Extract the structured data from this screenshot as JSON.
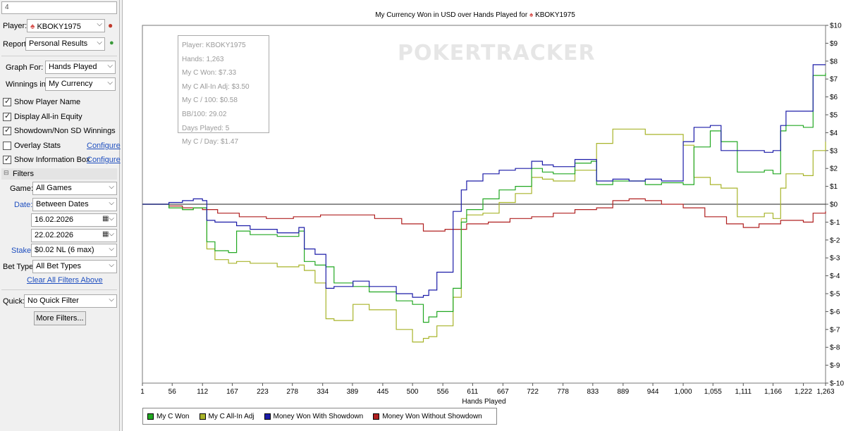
{
  "filters_panel": {
    "top_field_value": "4",
    "player_label": "Player:",
    "player_value": "KBOKY1975",
    "report_label": "Report:",
    "report_value": "Personal Results",
    "graph_for_label": "Graph For:",
    "graph_for_value": "Hands Played",
    "winnings_in_label": "Winnings in:",
    "winnings_in_value": "My Currency",
    "checkboxes": [
      {
        "label": "Show Player Name",
        "checked": true
      },
      {
        "label": "Display All-in Equity",
        "checked": true
      },
      {
        "label": "Showdown/Non SD Winnings",
        "checked": true
      },
      {
        "label": "Overlay Stats",
        "checked": false
      },
      {
        "label": "Show Information Box",
        "checked": true
      }
    ],
    "configure_label": "Configure",
    "filters_header": "Filters",
    "game_label": "Game:",
    "game_value": "All Games",
    "date_label": "Date:",
    "date_value": "Between Dates",
    "date_from": "16.02.2026",
    "date_to": "22.02.2026",
    "stake_label": "Stake:",
    "stake_value": "$0.02 NL (6 max)",
    "bet_type_label": "Bet Type:",
    "bet_type_value": "All Bet Types",
    "clear_filters_label": "Clear All Filters Above",
    "quick_label": "Quick:",
    "quick_value": "No Quick Filter",
    "more_filters_label": "More Filters..."
  },
  "info_box": [
    "Player: KBOKY1975",
    "Hands: 1,263",
    "My C Won: $7.33",
    "My C All-In Adj: $3.50",
    "My C / 100: $0.58",
    "BB/100: 29.02",
    "Days Played: 5",
    "My C / Day: $1.47"
  ],
  "watermark": "POKERTRACKER",
  "colors": {
    "my_c_won": "#22a822",
    "all_in_adj": "#a8b42a",
    "showdown": "#1c1ca8",
    "non_showdown": "#b02020"
  },
  "chart_data": {
    "type": "line",
    "title": "My Currency Won in USD over Hands Played for",
    "title_player": "KBOKY1975",
    "xlabel": "Hands Played",
    "ylabel": "",
    "xlim": [
      1,
      1263
    ],
    "ylim": [
      -10,
      10
    ],
    "x_ticks": [
      1,
      56,
      112,
      167,
      223,
      278,
      334,
      389,
      445,
      500,
      556,
      611,
      667,
      722,
      778,
      833,
      889,
      944,
      1000,
      1055,
      1111,
      1166,
      1222,
      1263
    ],
    "x_tick_labels": [
      "1",
      "56",
      "112",
      "167",
      "223",
      "278",
      "334",
      "389",
      "445",
      "500",
      "556",
      "611",
      "667",
      "722",
      "778",
      "833",
      "889",
      "944",
      "1,000",
      "1,055",
      "1,111",
      "1,166",
      "1,222",
      "1,263"
    ],
    "y_ticks": [
      10,
      9,
      8,
      7,
      6,
      5,
      4,
      3,
      2,
      1,
      0,
      -1,
      -2,
      -3,
      -4,
      -5,
      -6,
      -7,
      -8,
      -9,
      -10
    ],
    "y_tick_labels": [
      "$10",
      "$9",
      "$8",
      "$7",
      "$6",
      "$5",
      "$4",
      "$3",
      "$2",
      "$1",
      "$0",
      "$-1",
      "$-2",
      "$-3",
      "$-4",
      "$-5",
      "$-6",
      "$-7",
      "$-8",
      "$-9",
      "$-10"
    ],
    "grid": false,
    "legend_position": "bottom-left",
    "series": [
      {
        "name": "My C Won",
        "color": "#22a822",
        "x": [
          1,
          25,
          50,
          75,
          95,
          112,
          120,
          135,
          160,
          175,
          200,
          250,
          290,
          300,
          320,
          340,
          355,
          390,
          420,
          470,
          500,
          520,
          530,
          545,
          575,
          590,
          600,
          630,
          660,
          690,
          720,
          740,
          760,
          800,
          830,
          840,
          870,
          900,
          930,
          960,
          1000,
          1020,
          1050,
          1070,
          1100,
          1150,
          1166,
          1180,
          1190,
          1222,
          1240,
          1263
        ],
        "y": [
          0,
          0,
          -0.2,
          -0.3,
          -0.2,
          -0.2,
          -2.1,
          -2.6,
          -2.7,
          -1.5,
          -1.7,
          -1.8,
          -1.5,
          -3.2,
          -3.4,
          -3.5,
          -4.4,
          -4.6,
          -4.9,
          -5.4,
          -5.6,
          -6.6,
          -6.3,
          -6.0,
          -4.7,
          -1.0,
          -0.3,
          0.3,
          0.8,
          1.0,
          2.0,
          1.8,
          1.7,
          2.3,
          2.4,
          1.1,
          1.3,
          1.3,
          1.1,
          1.2,
          1.1,
          3.2,
          4.1,
          3.5,
          1.8,
          1.9,
          1.7,
          4.1,
          4.4,
          4.3,
          7.2,
          7.33
        ]
      },
      {
        "name": "My C All-In Adj",
        "color": "#a8b42a",
        "x": [
          1,
          25,
          50,
          75,
          95,
          112,
          120,
          135,
          160,
          175,
          200,
          250,
          290,
          300,
          320,
          340,
          355,
          390,
          420,
          470,
          500,
          520,
          530,
          545,
          575,
          590,
          600,
          630,
          660,
          690,
          720,
          740,
          760,
          800,
          830,
          840,
          870,
          900,
          930,
          960,
          1000,
          1020,
          1050,
          1070,
          1100,
          1150,
          1166,
          1180,
          1190,
          1222,
          1240,
          1263
        ],
        "y": [
          0,
          0,
          -0.2,
          -0.3,
          -0.2,
          -0.2,
          -2.5,
          -3.1,
          -3.3,
          -3.2,
          -3.3,
          -3.5,
          -3.4,
          -3.7,
          -4.4,
          -6.4,
          -6.5,
          -5.6,
          -5.9,
          -7.0,
          -7.7,
          -7.5,
          -7.4,
          -6.8,
          -5.2,
          -0.8,
          -0.6,
          -0.5,
          0.1,
          0.6,
          1.5,
          1.4,
          1.3,
          1.9,
          1.9,
          3.4,
          4.2,
          4.2,
          3.9,
          3.9,
          3.3,
          1.5,
          1.1,
          0.9,
          -0.7,
          -0.5,
          -0.8,
          0.9,
          1.7,
          1.6,
          3.0,
          3.5
        ]
      },
      {
        "name": "Money Won With Showdown",
        "color": "#1c1ca8",
        "x": [
          1,
          25,
          50,
          75,
          95,
          112,
          120,
          135,
          160,
          175,
          200,
          250,
          290,
          300,
          320,
          340,
          355,
          390,
          420,
          470,
          500,
          520,
          530,
          545,
          575,
          590,
          600,
          630,
          660,
          690,
          720,
          740,
          760,
          800,
          830,
          840,
          870,
          900,
          930,
          960,
          1000,
          1020,
          1050,
          1070,
          1100,
          1150,
          1166,
          1180,
          1190,
          1222,
          1240,
          1263
        ],
        "y": [
          0,
          0,
          0.1,
          0.2,
          0.3,
          0.2,
          -0.9,
          -1.0,
          -1.0,
          -1.2,
          -1.4,
          -1.6,
          -1.3,
          -2.5,
          -2.8,
          -4.7,
          -4.6,
          -4.3,
          -4.6,
          -5.0,
          -5.2,
          -5.1,
          -4.8,
          -3.8,
          -0.4,
          0.8,
          1.3,
          1.7,
          1.9,
          2.0,
          2.4,
          2.2,
          2.1,
          2.5,
          2.5,
          1.3,
          1.4,
          1.3,
          1.4,
          1.3,
          3.5,
          4.3,
          4.4,
          3.0,
          3.0,
          2.9,
          3.0,
          4.4,
          5.2,
          5.2,
          7.8,
          7.8
        ]
      },
      {
        "name": "Money Won Without Showdown",
        "color": "#b02020",
        "x": [
          1,
          25,
          50,
          75,
          95,
          112,
          140,
          180,
          230,
          280,
          330,
          380,
          430,
          480,
          520,
          560,
          600,
          640,
          680,
          720,
          760,
          800,
          840,
          870,
          900,
          930,
          960,
          1000,
          1040,
          1080,
          1111,
          1140,
          1180,
          1222,
          1240,
          1263
        ],
        "y": [
          0,
          0,
          -0.1,
          -0.2,
          -0.2,
          -0.3,
          -0.5,
          -0.7,
          -0.8,
          -0.7,
          -0.6,
          -0.6,
          -0.8,
          -1.1,
          -1.5,
          -1.4,
          -1.1,
          -1.0,
          -0.8,
          -0.7,
          -0.5,
          -0.3,
          -0.2,
          0.2,
          0.3,
          0.2,
          0.0,
          -0.2,
          -0.7,
          -1.1,
          -1.3,
          -1.1,
          -0.9,
          -1.0,
          -0.5,
          -0.4
        ]
      }
    ]
  }
}
